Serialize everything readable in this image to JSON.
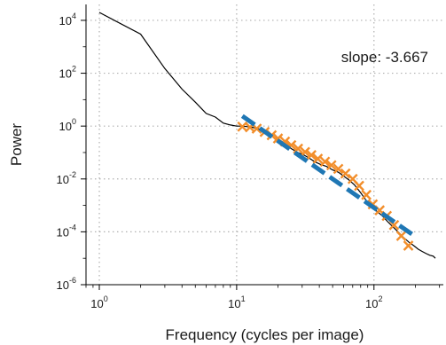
{
  "chart_data": {
    "type": "line",
    "xlabel": "Frequency (cycles per image)",
    "ylabel": "Power",
    "xscale": "log",
    "yscale": "log",
    "xlim": [
      0.8,
      320
    ],
    "ylim": [
      1e-06,
      40000
    ],
    "grid": true,
    "annotation": "slope: -3.667",
    "xticks": [
      {
        "base": "10",
        "exp": "0",
        "value": 1
      },
      {
        "base": "10",
        "exp": "1",
        "value": 10
      },
      {
        "base": "10",
        "exp": "2",
        "value": 100
      }
    ],
    "yticks": [
      {
        "base": "10",
        "exp": "4",
        "value": 10000
      },
      {
        "base": "10",
        "exp": "2",
        "value": 100
      },
      {
        "base": "10",
        "exp": "0",
        "value": 1
      },
      {
        "base": "10",
        "exp": "-2",
        "value": 0.01
      },
      {
        "base": "10",
        "exp": "-4",
        "value": 0.0001
      },
      {
        "base": "10",
        "exp": "-6",
        "value": 1e-06
      }
    ],
    "series": [
      {
        "style": "line",
        "color": "#000000",
        "x": [
          1,
          2,
          3,
          4,
          5,
          6,
          7,
          8,
          9,
          10,
          11,
          12,
          13,
          15,
          17,
          19,
          21,
          23,
          25,
          28,
          31,
          34,
          37,
          41,
          45,
          50,
          55,
          60,
          66,
          72,
          80,
          88,
          96,
          105,
          115,
          125,
          138,
          150,
          165,
          180,
          195,
          210,
          225,
          240,
          255,
          270,
          280
        ],
        "y": [
          20000,
          3000,
          150,
          25,
          8,
          3,
          2.2,
          1.3,
          1.1,
          1.0,
          1.0,
          0.95,
          0.9,
          0.75,
          0.5,
          0.35,
          0.28,
          0.2,
          0.14,
          0.1,
          0.08,
          0.06,
          0.045,
          0.035,
          0.03,
          0.022,
          0.018,
          0.013,
          0.009,
          0.006,
          0.003,
          0.0015,
          0.0009,
          0.0006,
          0.0004,
          0.00025,
          0.00015,
          0.0001,
          6e-05,
          4e-05,
          3e-05,
          2.2e-05,
          1.8e-05,
          1.5e-05,
          1.3e-05,
          1.2e-05,
          1e-05
        ]
      },
      {
        "style": "markers",
        "marker": "x",
        "color": "#f28e2b",
        "x": [
          11,
          12.5,
          14,
          16,
          18,
          20,
          22.5,
          25,
          28,
          31.5,
          35,
          39,
          44,
          49,
          55,
          62,
          70,
          78,
          88,
          98,
          110,
          124,
          140,
          158,
          178
        ],
        "y": [
          0.95,
          0.9,
          0.8,
          0.6,
          0.45,
          0.34,
          0.26,
          0.19,
          0.14,
          0.105,
          0.08,
          0.058,
          0.045,
          0.033,
          0.024,
          0.016,
          0.01,
          0.0055,
          0.0025,
          0.0011,
          0.00065,
          0.0004,
          0.00018,
          7e-05,
          3e-05
        ]
      },
      {
        "style": "dashed",
        "color": "#1f77b4",
        "x": [
          11,
          190
        ],
        "y": [
          2.4,
          8e-05
        ]
      }
    ]
  }
}
